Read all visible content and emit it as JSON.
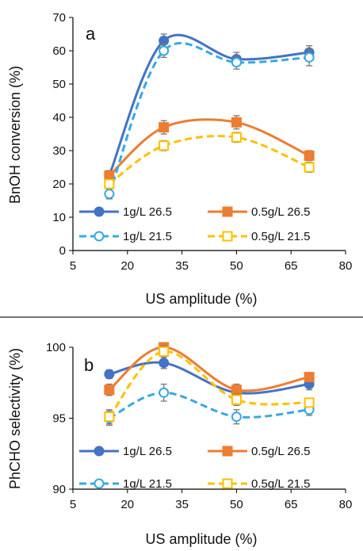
{
  "chart_data": [
    {
      "type": "line",
      "panel_label": "a",
      "xlabel": "US amplitude (%)",
      "ylabel": "BnOH conversion (%)",
      "xlim": [
        5,
        80
      ],
      "ylim": [
        0,
        70
      ],
      "xticks": [
        5,
        20,
        35,
        50,
        65,
        80
      ],
      "yticks": [
        0,
        10,
        20,
        30,
        40,
        50,
        60,
        70
      ],
      "grid": false,
      "legend_position": "bottom, two columns",
      "series": [
        {
          "name": "1g/L 26.5",
          "color": "#4472c4",
          "style": "solid",
          "marker": "circle-filled",
          "x": [
            15,
            30,
            50,
            70
          ],
          "y": [
            22.5,
            63,
            57.5,
            59.5
          ],
          "err": [
            1.5,
            2.0,
            2.0,
            2.0
          ]
        },
        {
          "name": "0.5g/L 26.5",
          "color": "#ed7d31",
          "style": "solid",
          "marker": "square-filled",
          "x": [
            15,
            30,
            50,
            70
          ],
          "y": [
            22.5,
            37,
            38.5,
            28.5
          ],
          "err": [
            1.5,
            2.0,
            2.0,
            1.5
          ]
        },
        {
          "name": "1g/L 21.5",
          "color": "#36a9e1",
          "style": "dashed",
          "marker": "circle-open",
          "x": [
            15,
            30,
            50,
            70
          ],
          "y": [
            17,
            60,
            56.5,
            58
          ],
          "err": [
            1.5,
            2.0,
            2.0,
            2.5
          ]
        },
        {
          "name": "0.5g/L 21.5",
          "color": "#ffc000",
          "style": "dashed",
          "marker": "square-open",
          "x": [
            15,
            30,
            50,
            70
          ],
          "y": [
            20,
            31.5,
            34,
            25
          ],
          "err": [
            1.5,
            1.5,
            1.5,
            1.5
          ]
        }
      ]
    },
    {
      "type": "line",
      "panel_label": "b",
      "xlabel": "US amplitude (%)",
      "ylabel": "PhCHO selectivity (%)",
      "xlim": [
        5,
        80
      ],
      "ylim": [
        90,
        100
      ],
      "xticks": [
        5,
        20,
        35,
        50,
        65,
        80
      ],
      "yticks": [
        90,
        95,
        100
      ],
      "grid": false,
      "legend_position": "bottom, two columns",
      "series": [
        {
          "name": "1g/L 26.5",
          "color": "#4472c4",
          "style": "solid",
          "marker": "circle-filled",
          "x": [
            15,
            30,
            50,
            70
          ],
          "y": [
            98.1,
            98.9,
            96.8,
            97.4
          ],
          "err": [
            0.3,
            0.4,
            0.4,
            0.4
          ]
        },
        {
          "name": "0.5g/L 26.5",
          "color": "#ed7d31",
          "style": "solid",
          "marker": "square-filled",
          "x": [
            15,
            30,
            50,
            70
          ],
          "y": [
            97,
            100,
            97,
            97.9
          ],
          "err": [
            0.4,
            0.3,
            0.4,
            0.3
          ]
        },
        {
          "name": "1g/L 21.5",
          "color": "#36a9e1",
          "style": "dashed",
          "marker": "circle-open",
          "x": [
            15,
            30,
            50,
            70
          ],
          "y": [
            95,
            96.8,
            95.1,
            95.6
          ],
          "err": [
            0.5,
            0.6,
            0.5,
            0.4
          ]
        },
        {
          "name": "0.5g/L 21.5",
          "color": "#ffc000",
          "style": "dashed",
          "marker": "square-open",
          "x": [
            15,
            30,
            50,
            70
          ],
          "y": [
            95.1,
            99.7,
            96.3,
            96.1
          ],
          "err": [
            0.5,
            0.4,
            0.4,
            0.3
          ]
        }
      ]
    }
  ]
}
